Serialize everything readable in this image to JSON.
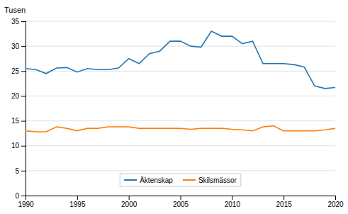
{
  "chart_data": {
    "type": "line",
    "ylabel": "Tusen",
    "x": [
      1990,
      1991,
      1992,
      1993,
      1994,
      1995,
      1996,
      1997,
      1998,
      1999,
      2000,
      2001,
      2002,
      2003,
      2004,
      2005,
      2006,
      2007,
      2008,
      2009,
      2010,
      2011,
      2012,
      2013,
      2014,
      2015,
      2016,
      2017,
      2018,
      2019,
      2020
    ],
    "series": [
      {
        "name": "Äktenskap",
        "values": [
          25.5,
          25.3,
          24.5,
          25.6,
          25.7,
          24.8,
          25.5,
          25.3,
          25.3,
          25.6,
          27.5,
          26.5,
          28.5,
          29.0,
          31.0,
          31.0,
          30.0,
          29.8,
          33.0,
          32.0,
          32.0,
          30.5,
          31.0,
          26.5,
          26.5,
          26.5,
          26.3,
          25.8,
          22.0,
          21.5,
          21.7
        ]
      },
      {
        "name": "Skilsmässor",
        "values": [
          13.0,
          12.8,
          12.8,
          13.8,
          13.5,
          13.0,
          13.5,
          13.5,
          13.8,
          13.8,
          13.8,
          13.5,
          13.5,
          13.5,
          13.5,
          13.5,
          13.3,
          13.5,
          13.5,
          13.5,
          13.3,
          13.2,
          13.0,
          13.8,
          14.0,
          13.0,
          13.0,
          13.0,
          13.0,
          13.2,
          13.5
        ]
      }
    ],
    "xlim": [
      1990,
      2020
    ],
    "xticks": [
      1990,
      1995,
      2000,
      2005,
      2010,
      2015,
      2020
    ],
    "ylim": [
      0,
      35
    ],
    "yticks": [
      0,
      5,
      10,
      15,
      20,
      25,
      30,
      35
    ],
    "grid": true,
    "legend": "bottom"
  }
}
